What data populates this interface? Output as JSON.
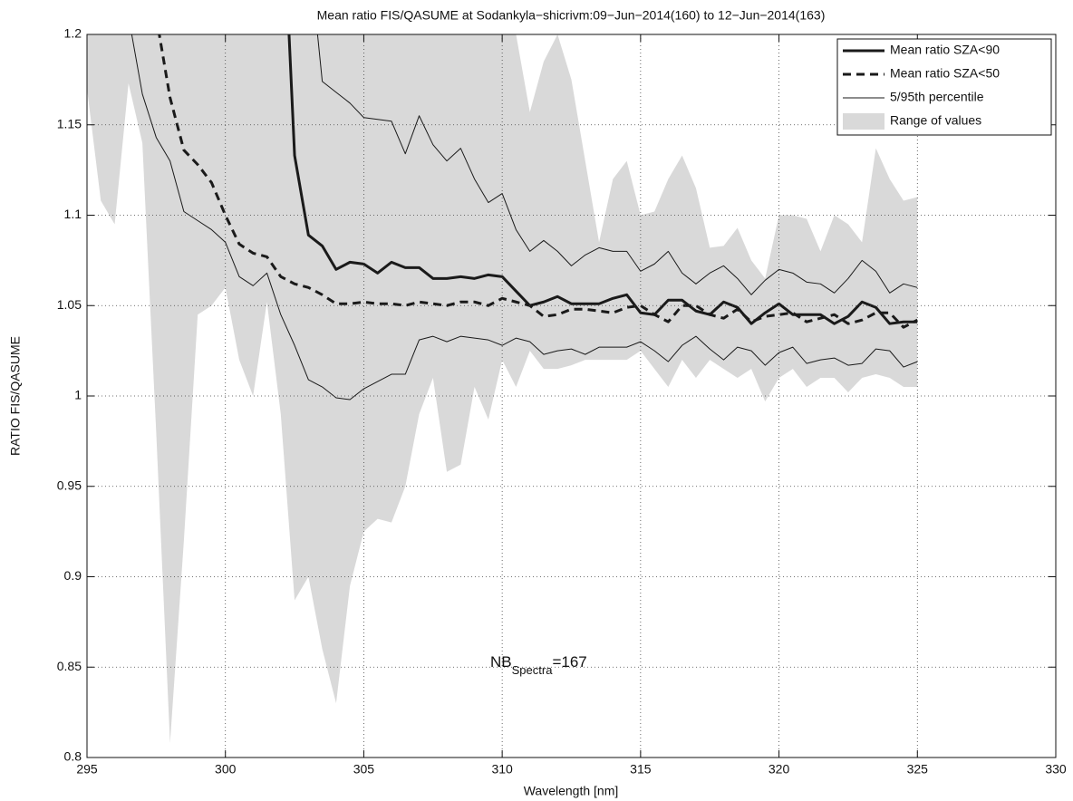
{
  "chart_data": {
    "type": "line",
    "title": "Mean ratio FIS/QASUME at Sodankyla−shicrivm:09−Jun−2014(160) to 12−Jun−2014(163)",
    "xlabel": "Wavelength [nm]",
    "ylabel": "RATIO FIS/QASUME",
    "xlim": [
      295,
      330
    ],
    "xticks": [
      295,
      300,
      305,
      310,
      315,
      320,
      325,
      330
    ],
    "ylim": [
      0.8,
      1.2
    ],
    "yticks": [
      0.8,
      0.85,
      0.9,
      0.95,
      1,
      1.05,
      1.1,
      1.15,
      1.2
    ],
    "grid": true,
    "legend": "upper right",
    "x": [
      295,
      295.5,
      296,
      296.5,
      297,
      297.5,
      298,
      298.5,
      299,
      299.5,
      300,
      300.5,
      301,
      301.5,
      302,
      302.5,
      303,
      303.5,
      304,
      304.5,
      305,
      305.5,
      306,
      306.5,
      307,
      307.5,
      308,
      308.5,
      309,
      309.5,
      310,
      310.5,
      311,
      311.5,
      312,
      312.5,
      313,
      313.5,
      314,
      314.5,
      315,
      315.5,
      316,
      316.5,
      317,
      317.5,
      318,
      318.5,
      319,
      319.5,
      320,
      320.5,
      321,
      321.5,
      322,
      322.5,
      323,
      323.5,
      324,
      324.5,
      325
    ],
    "series": [
      {
        "name": "Mean ratio SZA<90",
        "color": "#1a1a1a",
        "line_style": "thick",
        "values": [
          null,
          null,
          null,
          null,
          null,
          null,
          null,
          null,
          null,
          null,
          null,
          null,
          null,
          null,
          1.3,
          1.133,
          1.089,
          1.083,
          1.07,
          1.074,
          1.073,
          1.068,
          1.074,
          1.071,
          1.071,
          1.065,
          1.065,
          1.066,
          1.065,
          1.067,
          1.066,
          1.058,
          1.05,
          1.052,
          1.055,
          1.051,
          1.051,
          1.051,
          1.054,
          1.056,
          1.046,
          1.045,
          1.053,
          1.053,
          1.047,
          1.045,
          1.052,
          1.049,
          1.04,
          1.046,
          1.051,
          1.045,
          1.045,
          1.045,
          1.04,
          1.044,
          1.052,
          1.049,
          1.04,
          1.041,
          1.041
        ]
      },
      {
        "name": "Mean ratio SZA<50",
        "color": "#1a1a1a",
        "line_style": "dashed",
        "values": [
          null,
          null,
          null,
          null,
          null,
          1.21,
          1.165,
          1.136,
          1.128,
          1.118,
          1.1,
          1.084,
          1.079,
          1.077,
          1.066,
          1.062,
          1.06,
          1.056,
          1.051,
          1.051,
          1.052,
          1.051,
          1.051,
          1.05,
          1.052,
          1.051,
          1.05,
          1.052,
          1.052,
          1.05,
          1.054,
          1.052,
          1.05,
          1.044,
          1.045,
          1.048,
          1.048,
          1.047,
          1.046,
          1.049,
          1.05,
          1.045,
          1.041,
          1.05,
          1.05,
          1.045,
          1.043,
          1.048,
          1.041,
          1.044,
          1.045,
          1.046,
          1.041,
          1.043,
          1.045,
          1.04,
          1.042,
          1.046,
          1.046,
          1.038,
          1.042
        ]
      },
      {
        "name": "5/95th percentile",
        "color": "#1a1a1a",
        "line_style": "thin",
        "lower": [
          null,
          null,
          null,
          1.21,
          1.167,
          1.143,
          1.13,
          1.102,
          1.097,
          1.092,
          1.085,
          1.066,
          1.061,
          1.068,
          1.045,
          1.028,
          1.009,
          1.005,
          0.999,
          0.998,
          1.004,
          1.008,
          1.012,
          1.012,
          1.031,
          1.033,
          1.03,
          1.033,
          1.032,
          1.031,
          1.028,
          1.032,
          1.03,
          1.023,
          1.025,
          1.026,
          1.023,
          1.027,
          1.027,
          1.027,
          1.03,
          1.025,
          1.019,
          1.028,
          1.033,
          1.026,
          1.02,
          1.027,
          1.025,
          1.017,
          1.024,
          1.027,
          1.018,
          1.02,
          1.021,
          1.017,
          1.018,
          1.026,
          1.025,
          1.016,
          1.019
        ],
        "upper": [
          null,
          null,
          null,
          null,
          null,
          null,
          null,
          null,
          null,
          null,
          null,
          null,
          null,
          null,
          null,
          null,
          1.25,
          1.174,
          1.168,
          1.162,
          1.154,
          1.153,
          1.152,
          1.134,
          1.155,
          1.139,
          1.13,
          1.137,
          1.12,
          1.107,
          1.112,
          1.092,
          1.08,
          1.086,
          1.08,
          1.072,
          1.078,
          1.082,
          1.08,
          1.08,
          1.069,
          1.073,
          1.08,
          1.068,
          1.062,
          1.068,
          1.072,
          1.065,
          1.056,
          1.064,
          1.07,
          1.068,
          1.063,
          1.062,
          1.057,
          1.065,
          1.075,
          1.069,
          1.057,
          1.062,
          1.06
        ]
      },
      {
        "name": "Range of values",
        "color": "#d9d9d9",
        "line_style": "area",
        "lower": [
          1.17,
          1.108,
          1.095,
          1.173,
          1.14,
          0.98,
          0.808,
          0.92,
          1.045,
          1.05,
          1.06,
          1.02,
          1.0,
          1.052,
          0.99,
          0.887,
          0.9,
          0.86,
          0.83,
          0.895,
          0.925,
          0.932,
          0.93,
          0.95,
          0.99,
          1.01,
          0.958,
          0.962,
          1.005,
          0.987,
          1.02,
          1.005,
          1.025,
          1.015,
          1.015,
          1.017,
          1.02,
          1.02,
          1.02,
          1.02,
          1.025,
          1.015,
          1.005,
          1.02,
          1.01,
          1.02,
          1.015,
          1.01,
          1.015,
          0.997,
          1.01,
          1.015,
          1.005,
          1.01,
          1.01,
          1.002,
          1.01,
          1.012,
          1.01,
          1.005,
          1.005
        ],
        "upper": [
          1.2,
          1.2,
          1.2,
          1.2,
          1.2,
          1.2,
          1.2,
          1.2,
          1.2,
          1.2,
          1.2,
          1.2,
          1.2,
          1.2,
          1.2,
          1.2,
          1.2,
          1.2,
          1.2,
          1.2,
          1.2,
          1.2,
          1.2,
          1.2,
          1.2,
          1.2,
          1.2,
          1.2,
          1.2,
          1.2,
          1.2,
          1.2,
          1.157,
          1.185,
          1.2,
          1.175,
          1.13,
          1.085,
          1.12,
          1.13,
          1.1,
          1.102,
          1.12,
          1.133,
          1.115,
          1.082,
          1.083,
          1.093,
          1.075,
          1.065,
          1.1,
          1.1,
          1.098,
          1.08,
          1.1,
          1.095,
          1.085,
          1.137,
          1.12,
          1.108,
          1.11
        ]
      }
    ],
    "annotation": {
      "text": "NB",
      "subscript": "Spectra",
      "suffix": "=167"
    }
  }
}
